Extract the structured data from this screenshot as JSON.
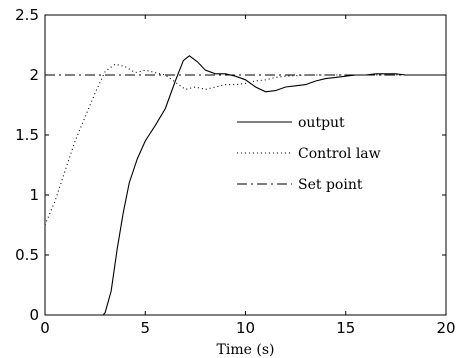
{
  "chart_data": {
    "type": "line",
    "title": "",
    "xlabel": "Time (s)",
    "ylabel": "",
    "xlim": [
      0,
      20
    ],
    "ylim": [
      0,
      2.5
    ],
    "x_ticks": [
      0,
      5,
      10,
      15,
      20
    ],
    "x_tick_labels": [
      "0",
      "5",
      "10",
      "15",
      "20"
    ],
    "y_ticks": [
      0,
      0.5,
      1,
      1.5,
      2,
      2.5
    ],
    "y_tick_labels": [
      "0",
      "0.5",
      "1",
      "1.5",
      "2",
      "2.5"
    ],
    "grid": false,
    "legend_position": "center-right",
    "series": [
      {
        "name": "output",
        "style": "solid",
        "color": "#000000",
        "x": [
          0,
          2.9,
          3.0,
          3.3,
          3.6,
          3.9,
          4.2,
          4.6,
          5.0,
          5.5,
          6.0,
          6.5,
          6.9,
          7.2,
          7.6,
          8.0,
          8.5,
          9.0,
          9.5,
          10.0,
          10.5,
          11.0,
          11.5,
          12.0,
          12.5,
          13.0,
          13.5,
          14.0,
          14.5,
          15.0,
          15.5,
          16.0,
          16.5,
          17.0,
          17.5,
          18.0,
          18.5,
          19.0,
          19.5,
          20.0
        ],
        "y": [
          0,
          0,
          0.02,
          0.2,
          0.55,
          0.85,
          1.1,
          1.3,
          1.45,
          1.58,
          1.72,
          1.95,
          2.12,
          2.16,
          2.11,
          2.04,
          2.01,
          2.01,
          1.99,
          1.96,
          1.9,
          1.86,
          1.87,
          1.9,
          1.91,
          1.92,
          1.95,
          1.97,
          1.98,
          1.99,
          2.0,
          2.0,
          2.01,
          2.01,
          2.01,
          2.0,
          2.0,
          2.0,
          2.0,
          2.0
        ]
      },
      {
        "name": "Control law",
        "style": "dotted",
        "color": "#000000",
        "x": [
          0,
          0.5,
          1.0,
          1.5,
          2.0,
          2.5,
          3.0,
          3.5,
          4.0,
          4.5,
          5.0,
          5.5,
          6.0,
          6.5,
          7.0,
          7.5,
          8.0,
          8.5,
          9.0,
          9.5,
          10.0,
          10.5,
          11.0,
          11.5,
          12.0,
          13.0,
          14.0,
          15.0,
          16.0,
          17.0,
          18.0,
          19.0,
          20.0
        ],
        "y": [
          0.75,
          0.95,
          1.2,
          1.45,
          1.65,
          1.85,
          2.03,
          2.09,
          2.07,
          2.02,
          2.04,
          2.02,
          2.0,
          1.94,
          1.88,
          1.9,
          1.88,
          1.9,
          1.92,
          1.92,
          1.93,
          1.95,
          1.96,
          1.98,
          1.99,
          2.0,
          2.0,
          2.0,
          2.0,
          2.0,
          2.0,
          2.0,
          2.0
        ]
      },
      {
        "name": "Set point",
        "style": "dashdot",
        "color": "#000000",
        "x": [
          0,
          20
        ],
        "y": [
          2,
          2
        ]
      }
    ]
  }
}
